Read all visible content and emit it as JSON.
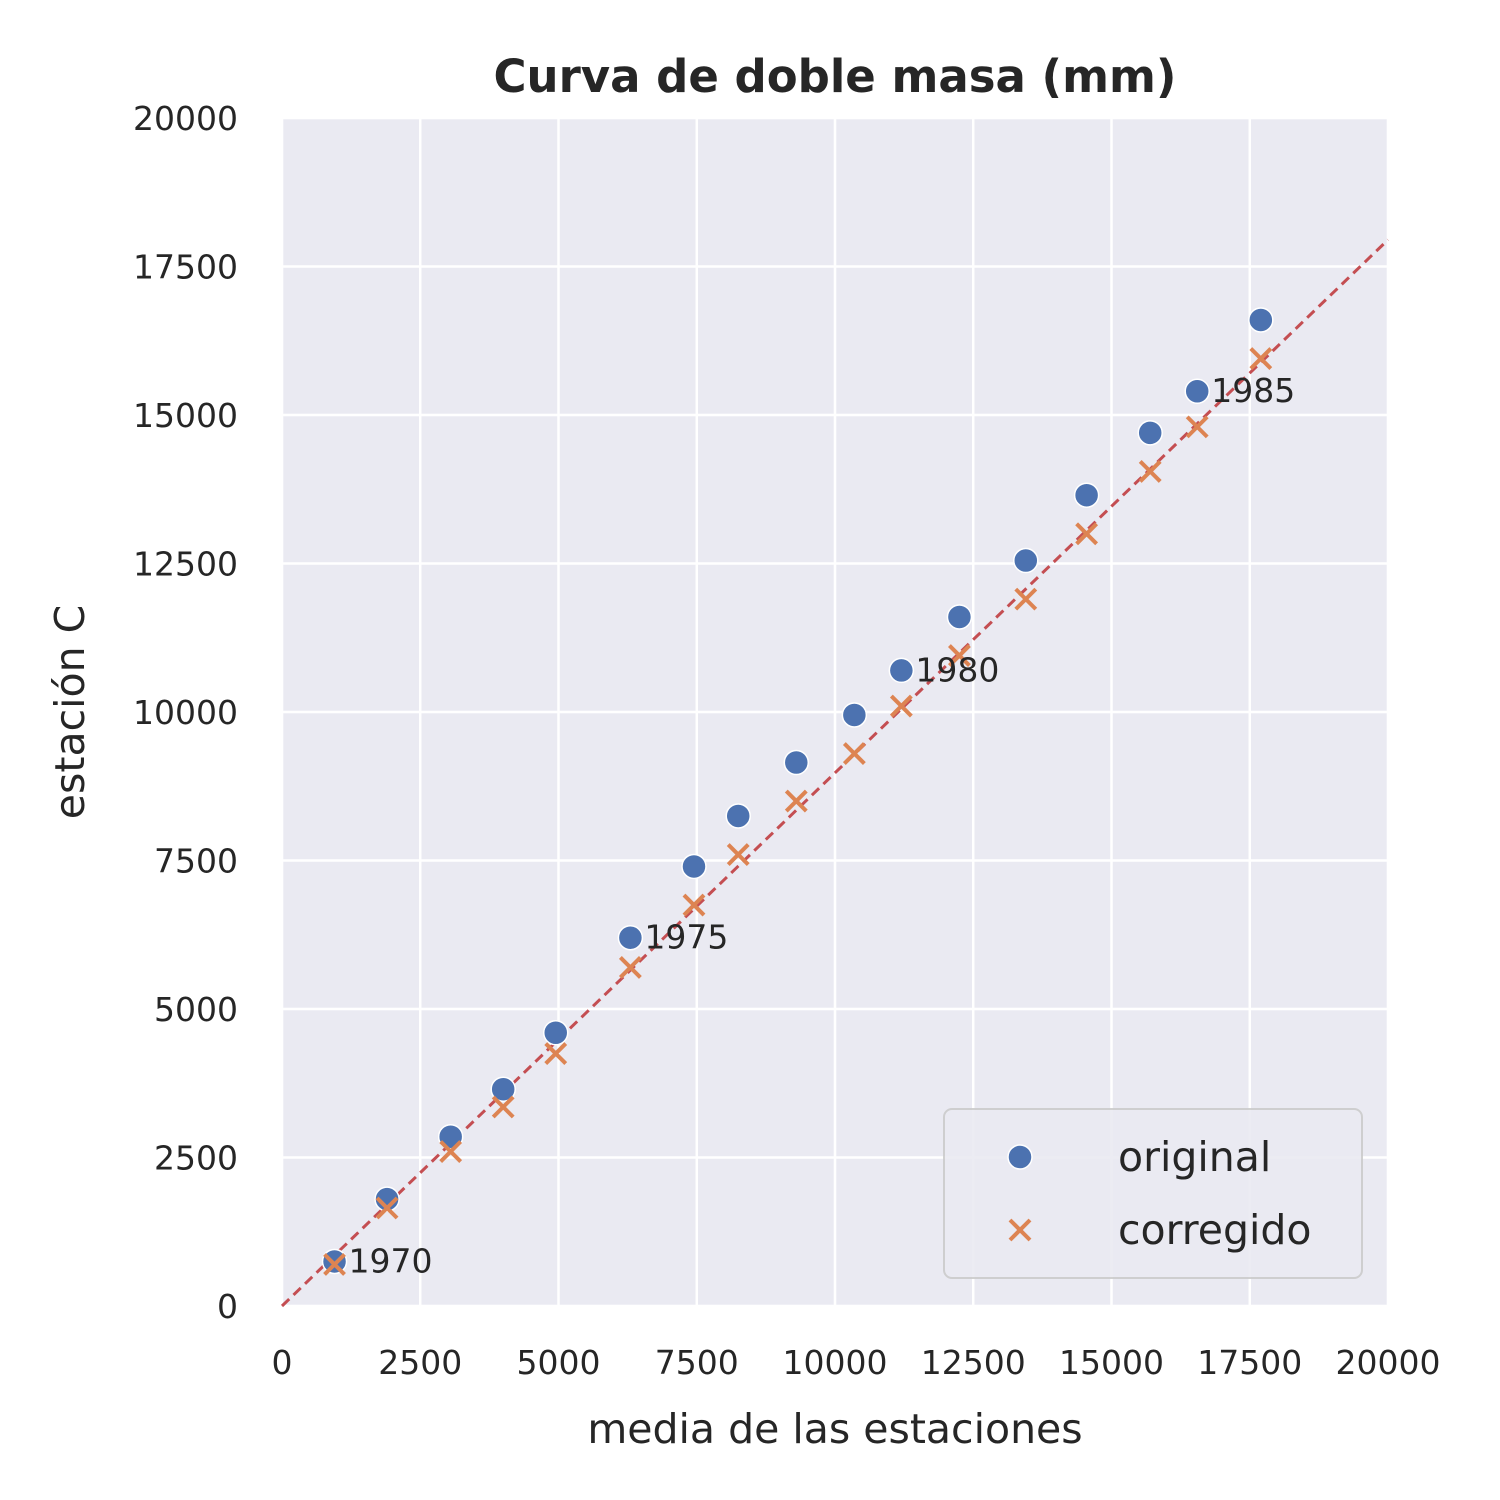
{
  "chart_data": {
    "type": "scatter",
    "title": "Curva de doble masa (mm)",
    "xlabel": "media de las estaciones",
    "ylabel": "estación C",
    "xlim": [
      0,
      20000
    ],
    "ylim": [
      0,
      20000
    ],
    "xticks": [
      "0",
      "2500",
      "5000",
      "7500",
      "10000",
      "12500",
      "15000",
      "17500",
      "20000"
    ],
    "yticks": [
      "0",
      "2500",
      "5000",
      "7500",
      "10000",
      "12500",
      "15000",
      "17500",
      "20000"
    ],
    "grid": true,
    "legend_position": "lower-right",
    "series": [
      {
        "name": "original",
        "marker": "circle",
        "color": "#4c72b0",
        "x": [
          950,
          1900,
          3050,
          4000,
          4950,
          6300,
          7450,
          8250,
          9300,
          10350,
          11200,
          12250,
          13450,
          14550,
          15700,
          16550,
          17700
        ],
        "y": [
          750,
          1800,
          2850,
          3650,
          4600,
          6200,
          7400,
          8250,
          9150,
          9950,
          10700,
          11600,
          12550,
          13650,
          14700,
          15400,
          16600
        ]
      },
      {
        "name": "corregido",
        "marker": "x",
        "color": "#dd8452",
        "x": [
          950,
          1900,
          3050,
          4000,
          4950,
          6300,
          7450,
          8250,
          9300,
          10350,
          11200,
          12250,
          13450,
          14550,
          15700,
          16550,
          17700
        ],
        "y": [
          700,
          1650,
          2600,
          3350,
          4250,
          5700,
          6750,
          7600,
          8500,
          9300,
          10100,
          10950,
          11900,
          13000,
          14050,
          14800,
          15950
        ]
      }
    ],
    "reference_line": {
      "style": "dashed",
      "color": "#c44e52",
      "x": [
        0,
        20000
      ],
      "y": [
        0,
        17950
      ]
    },
    "annotations": [
      {
        "text": "1970",
        "x": 950,
        "y": 750
      },
      {
        "text": "1975",
        "x": 6300,
        "y": 6200
      },
      {
        "text": "1980",
        "x": 11200,
        "y": 10700
      },
      {
        "text": "1985",
        "x": 16550,
        "y": 15400
      }
    ]
  }
}
